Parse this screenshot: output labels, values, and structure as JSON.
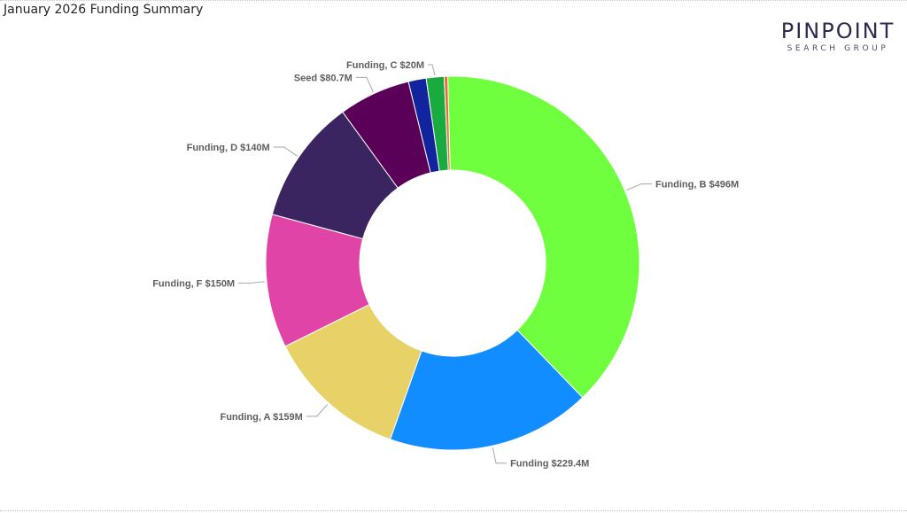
{
  "report": {
    "title": "January 2026 Funding Summary"
  },
  "logo": {
    "main": "PINPOINT",
    "sub": "SEARCH GROUP"
  },
  "chart_data": {
    "type": "pie",
    "donut": true,
    "title": "January 2026 Funding Summary",
    "legend": "none",
    "slices": [
      {
        "label": "Funding, B",
        "value": 496,
        "display": "$496M",
        "color": "#70ff3e",
        "label_side": "right"
      },
      {
        "label": "Funding",
        "value": 229.4,
        "display": "$229.4M",
        "color": "#118dff",
        "label_side": "right"
      },
      {
        "label": "Funding, A",
        "value": 159,
        "display": "$159M",
        "color": "#e8d166",
        "label_side": "left"
      },
      {
        "label": "Funding, F",
        "value": 150,
        "display": "$150M",
        "color": "#e044a7",
        "label_side": "left"
      },
      {
        "label": "Funding, D",
        "value": 140,
        "display": "$140M",
        "color": "#3b2560",
        "label_side": "left"
      },
      {
        "label": "Seed",
        "value": 80.7,
        "display": "$80.7M",
        "color": "#5b0058",
        "label_side": "left"
      },
      {
        "label": "",
        "value": 20,
        "display": "",
        "color": "#12239e",
        "label_side": "none"
      },
      {
        "label": "Funding, C",
        "value": 20,
        "display": "$20M",
        "color": "#1aab40",
        "label_side": "left"
      },
      {
        "label": "",
        "value": 4,
        "display": "",
        "color": "#e66c37",
        "label_side": "none"
      }
    ]
  }
}
